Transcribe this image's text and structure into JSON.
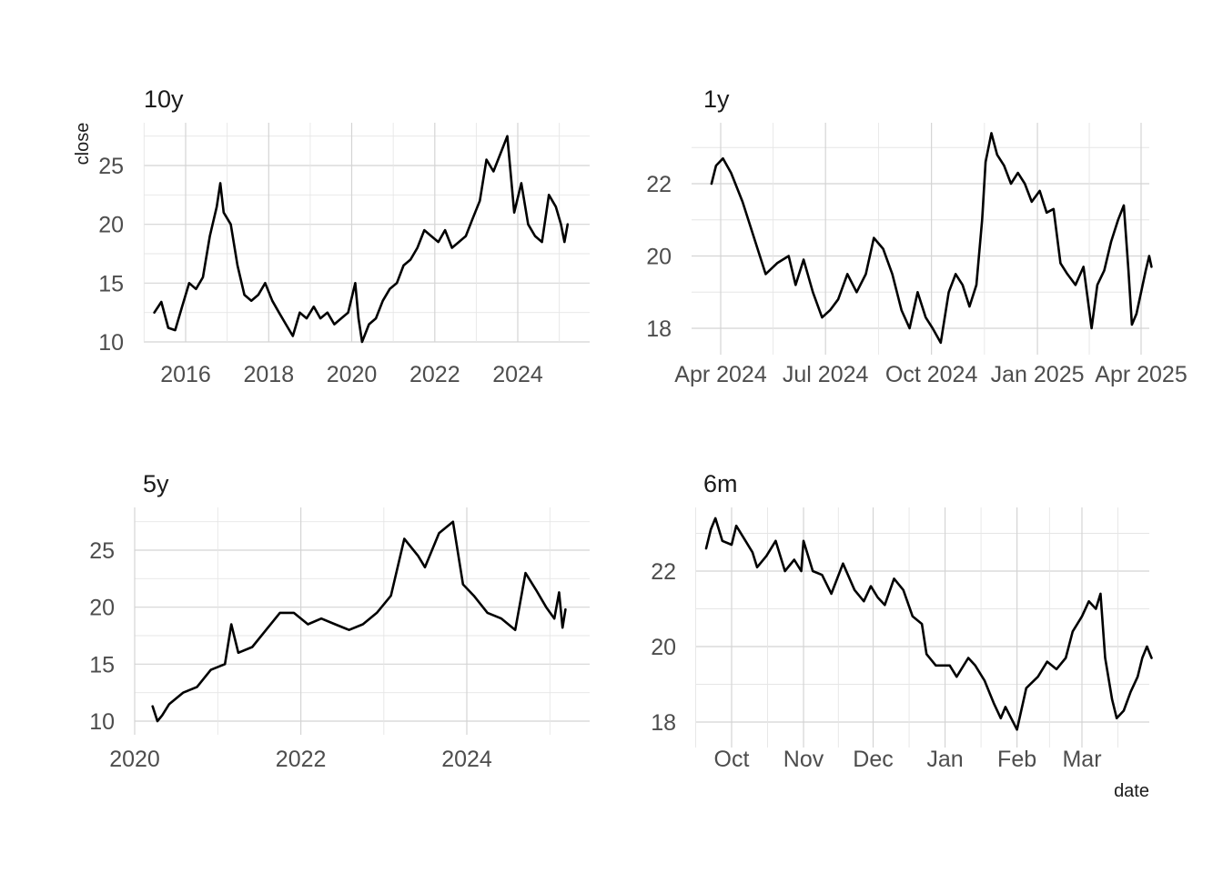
{
  "figure": {
    "ylabel": "close",
    "xlabel": "date"
  },
  "chart_data": [
    {
      "type": "line",
      "title": "10y",
      "x_unit": "date",
      "xlim": [
        "2015-03-20",
        "2025-03-20"
      ],
      "ylim": [
        10,
        27.5
      ],
      "x_ticks": [
        {
          "date": "2016-01-01",
          "label": "2016"
        },
        {
          "date": "2018-01-01",
          "label": "2018"
        },
        {
          "date": "2020-01-01",
          "label": "2020"
        },
        {
          "date": "2022-01-01",
          "label": "2022"
        },
        {
          "date": "2024-01-01",
          "label": "2024"
        }
      ],
      "y_ticks": [
        10,
        15,
        20,
        25
      ],
      "grid": true,
      "series": [
        {
          "values": [
            [
              "2015-04-01",
              12.5
            ],
            [
              "2015-06-01",
              13.4
            ],
            [
              "2015-08-01",
              11.2
            ],
            [
              "2015-10-01",
              11.0
            ],
            [
              "2015-12-01",
              13.0
            ],
            [
              "2016-02-01",
              15.0
            ],
            [
              "2016-04-01",
              14.5
            ],
            [
              "2016-06-01",
              15.5
            ],
            [
              "2016-08-01",
              19.0
            ],
            [
              "2016-10-01",
              21.5
            ],
            [
              "2016-11-01",
              23.5
            ],
            [
              "2016-12-01",
              21.0
            ],
            [
              "2017-02-01",
              20.0
            ],
            [
              "2017-04-01",
              16.5
            ],
            [
              "2017-06-01",
              14.0
            ],
            [
              "2017-08-01",
              13.5
            ],
            [
              "2017-10-01",
              14.0
            ],
            [
              "2017-12-01",
              15.0
            ],
            [
              "2018-02-01",
              13.5
            ],
            [
              "2018-04-01",
              12.5
            ],
            [
              "2018-06-01",
              11.5
            ],
            [
              "2018-08-01",
              10.5
            ],
            [
              "2018-10-01",
              12.5
            ],
            [
              "2018-12-01",
              12.0
            ],
            [
              "2019-02-01",
              13.0
            ],
            [
              "2019-04-01",
              12.0
            ],
            [
              "2019-06-01",
              12.5
            ],
            [
              "2019-08-01",
              11.5
            ],
            [
              "2019-10-01",
              12.0
            ],
            [
              "2019-12-01",
              12.5
            ],
            [
              "2020-02-01",
              15.0
            ],
            [
              "2020-03-01",
              12.0
            ],
            [
              "2020-04-01",
              10.0
            ],
            [
              "2020-06-01",
              11.5
            ],
            [
              "2020-08-01",
              12.0
            ],
            [
              "2020-10-01",
              13.5
            ],
            [
              "2020-12-01",
              14.5
            ],
            [
              "2021-02-01",
              15.0
            ],
            [
              "2021-04-01",
              16.5
            ],
            [
              "2021-06-01",
              17.0
            ],
            [
              "2021-08-01",
              18.0
            ],
            [
              "2021-10-01",
              19.5
            ],
            [
              "2021-12-01",
              19.0
            ],
            [
              "2022-02-01",
              18.5
            ],
            [
              "2022-04-01",
              19.5
            ],
            [
              "2022-06-01",
              18.0
            ],
            [
              "2022-08-01",
              18.5
            ],
            [
              "2022-10-01",
              19.0
            ],
            [
              "2022-12-01",
              20.5
            ],
            [
              "2023-02-01",
              22.0
            ],
            [
              "2023-04-01",
              25.5
            ],
            [
              "2023-06-01",
              24.5
            ],
            [
              "2023-08-01",
              26.0
            ],
            [
              "2023-10-01",
              27.5
            ],
            [
              "2023-12-01",
              21.0
            ],
            [
              "2024-02-01",
              23.5
            ],
            [
              "2024-04-01",
              20.0
            ],
            [
              "2024-06-01",
              19.0
            ],
            [
              "2024-08-01",
              18.5
            ],
            [
              "2024-10-01",
              22.5
            ],
            [
              "2024-12-01",
              21.5
            ],
            [
              "2025-01-15",
              20.0
            ],
            [
              "2025-02-15",
              18.5
            ],
            [
              "2025-03-15",
              20.0
            ]
          ]
        }
      ]
    },
    {
      "type": "line",
      "title": "1y",
      "x_unit": "date",
      "xlim": [
        "2024-03-20",
        "2025-04-10"
      ],
      "ylim": [
        17.5,
        23.5
      ],
      "x_ticks": [
        {
          "date": "2024-04-01",
          "label": "Apr 2024"
        },
        {
          "date": "2024-07-01",
          "label": "Jul 2024"
        },
        {
          "date": "2024-10-01",
          "label": "Oct 2024"
        },
        {
          "date": "2025-01-01",
          "label": "Jan 2025"
        },
        {
          "date": "2025-04-01",
          "label": "Apr 2025"
        }
      ],
      "y_ticks": [
        18,
        20,
        22
      ],
      "grid": true,
      "series": [
        {
          "values": [
            [
              "2024-03-24",
              22.0
            ],
            [
              "2024-03-28",
              22.5
            ],
            [
              "2024-04-03",
              22.7
            ],
            [
              "2024-04-10",
              22.3
            ],
            [
              "2024-04-20",
              21.5
            ],
            [
              "2024-04-30",
              20.5
            ],
            [
              "2024-05-10",
              19.5
            ],
            [
              "2024-05-20",
              19.8
            ],
            [
              "2024-05-30",
              20.0
            ],
            [
              "2024-06-05",
              19.2
            ],
            [
              "2024-06-12",
              19.9
            ],
            [
              "2024-06-20",
              19.0
            ],
            [
              "2024-06-28",
              18.3
            ],
            [
              "2024-07-05",
              18.5
            ],
            [
              "2024-07-12",
              18.8
            ],
            [
              "2024-07-20",
              19.5
            ],
            [
              "2024-07-28",
              19.0
            ],
            [
              "2024-08-05",
              19.5
            ],
            [
              "2024-08-12",
              20.5
            ],
            [
              "2024-08-20",
              20.2
            ],
            [
              "2024-08-28",
              19.5
            ],
            [
              "2024-09-05",
              18.5
            ],
            [
              "2024-09-12",
              18.0
            ],
            [
              "2024-09-19",
              19.0
            ],
            [
              "2024-09-26",
              18.3
            ],
            [
              "2024-10-02",
              18.0
            ],
            [
              "2024-10-09",
              17.6
            ],
            [
              "2024-10-16",
              19.0
            ],
            [
              "2024-10-22",
              19.5
            ],
            [
              "2024-10-28",
              19.2
            ],
            [
              "2024-11-03",
              18.6
            ],
            [
              "2024-11-09",
              19.2
            ],
            [
              "2024-11-14",
              21.0
            ],
            [
              "2024-11-17",
              22.6
            ],
            [
              "2024-11-22",
              23.4
            ],
            [
              "2024-11-27",
              22.8
            ],
            [
              "2024-12-03",
              22.5
            ],
            [
              "2024-12-09",
              22.0
            ],
            [
              "2024-12-15",
              22.3
            ],
            [
              "2024-12-21",
              22.0
            ],
            [
              "2024-12-27",
              21.5
            ],
            [
              "2025-01-03",
              21.8
            ],
            [
              "2025-01-09",
              21.2
            ],
            [
              "2025-01-15",
              21.3
            ],
            [
              "2025-01-21",
              19.8
            ],
            [
              "2025-01-27",
              19.5
            ],
            [
              "2025-02-03",
              19.2
            ],
            [
              "2025-02-10",
              19.7
            ],
            [
              "2025-02-17",
              18.0
            ],
            [
              "2025-02-22",
              19.2
            ],
            [
              "2025-02-28",
              19.6
            ],
            [
              "2025-03-06",
              20.4
            ],
            [
              "2025-03-12",
              21.0
            ],
            [
              "2025-03-17",
              21.4
            ],
            [
              "2025-03-21",
              19.6
            ],
            [
              "2025-03-24",
              18.1
            ],
            [
              "2025-03-28",
              18.4
            ],
            [
              "2025-04-01",
              19.0
            ],
            [
              "2025-04-05",
              19.6
            ],
            [
              "2025-04-08",
              20.0
            ],
            [
              "2025-04-10",
              19.7
            ]
          ]
        }
      ]
    },
    {
      "type": "line",
      "title": "5y",
      "x_unit": "date",
      "xlim": [
        "2020-01-01",
        "2025-06-01"
      ],
      "ylim": [
        10,
        27.5
      ],
      "x_ticks": [
        {
          "date": "2020-01-01",
          "label": "2020"
        },
        {
          "date": "2022-01-01",
          "label": "2022"
        },
        {
          "date": "2024-01-01",
          "label": "2024"
        }
      ],
      "y_ticks": [
        10,
        15,
        20,
        25
      ],
      "grid": true,
      "series": [
        {
          "values": [
            [
              "2020-03-20",
              11.3
            ],
            [
              "2020-04-10",
              10.0
            ],
            [
              "2020-05-01",
              10.5
            ],
            [
              "2020-06-01",
              11.5
            ],
            [
              "2020-08-01",
              12.5
            ],
            [
              "2020-10-01",
              13.0
            ],
            [
              "2020-12-01",
              14.5
            ],
            [
              "2021-02-01",
              15.0
            ],
            [
              "2021-03-01",
              18.5
            ],
            [
              "2021-04-01",
              16.0
            ],
            [
              "2021-06-01",
              16.5
            ],
            [
              "2021-08-01",
              18.0
            ],
            [
              "2021-10-01",
              19.5
            ],
            [
              "2021-12-01",
              19.5
            ],
            [
              "2022-02-01",
              18.5
            ],
            [
              "2022-04-01",
              19.0
            ],
            [
              "2022-06-01",
              18.5
            ],
            [
              "2022-08-01",
              18.0
            ],
            [
              "2022-10-01",
              18.5
            ],
            [
              "2022-12-01",
              19.5
            ],
            [
              "2023-02-01",
              21.0
            ],
            [
              "2023-04-01",
              26.0
            ],
            [
              "2023-06-01",
              24.5
            ],
            [
              "2023-07-01",
              23.5
            ],
            [
              "2023-09-01",
              26.5
            ],
            [
              "2023-11-01",
              27.5
            ],
            [
              "2023-12-15",
              22.0
            ],
            [
              "2024-02-01",
              21.0
            ],
            [
              "2024-04-01",
              19.5
            ],
            [
              "2024-06-01",
              19.0
            ],
            [
              "2024-08-01",
              18.0
            ],
            [
              "2024-09-15",
              23.0
            ],
            [
              "2024-11-01",
              21.5
            ],
            [
              "2024-12-15",
              20.0
            ],
            [
              "2025-01-20",
              19.0
            ],
            [
              "2025-02-10",
              21.3
            ],
            [
              "2025-02-25",
              18.2
            ],
            [
              "2025-03-10",
              19.8
            ]
          ]
        }
      ]
    },
    {
      "type": "line",
      "title": "6m",
      "x_unit": "date",
      "xlim": [
        "2024-09-14",
        "2025-03-31"
      ],
      "ylim": [
        17.7,
        23.6
      ],
      "x_ticks": [
        {
          "date": "2024-10-01",
          "label": "Oct"
        },
        {
          "date": "2024-11-01",
          "label": "Nov"
        },
        {
          "date": "2024-12-01",
          "label": "Dec"
        },
        {
          "date": "2025-01-01",
          "label": "Jan"
        },
        {
          "date": "2025-02-01",
          "label": "Feb"
        },
        {
          "date": "2025-03-01",
          "label": "Mar"
        }
      ],
      "y_ticks": [
        18,
        20,
        22
      ],
      "grid": true,
      "series": [
        {
          "values": [
            [
              "2024-09-20",
              22.6
            ],
            [
              "2024-09-22",
              23.1
            ],
            [
              "2024-09-24",
              23.4
            ],
            [
              "2024-09-27",
              22.8
            ],
            [
              "2024-10-01",
              22.7
            ],
            [
              "2024-10-03",
              23.2
            ],
            [
              "2024-10-07",
              22.8
            ],
            [
              "2024-10-10",
              22.5
            ],
            [
              "2024-10-12",
              22.1
            ],
            [
              "2024-10-16",
              22.4
            ],
            [
              "2024-10-20",
              22.8
            ],
            [
              "2024-10-24",
              22.0
            ],
            [
              "2024-10-28",
              22.3
            ],
            [
              "2024-10-31",
              22.0
            ],
            [
              "2024-11-01",
              22.8
            ],
            [
              "2024-11-05",
              22.0
            ],
            [
              "2024-11-09",
              21.9
            ],
            [
              "2024-11-13",
              21.4
            ],
            [
              "2024-11-18",
              22.2
            ],
            [
              "2024-11-23",
              21.5
            ],
            [
              "2024-11-27",
              21.2
            ],
            [
              "2024-11-30",
              21.6
            ],
            [
              "2024-12-03",
              21.3
            ],
            [
              "2024-12-06",
              21.1
            ],
            [
              "2024-12-10",
              21.8
            ],
            [
              "2024-12-14",
              21.5
            ],
            [
              "2024-12-18",
              20.8
            ],
            [
              "2024-12-22",
              20.6
            ],
            [
              "2024-12-24",
              19.8
            ],
            [
              "2024-12-28",
              19.5
            ],
            [
              "2025-01-03",
              19.5
            ],
            [
              "2025-01-06",
              19.2
            ],
            [
              "2025-01-11",
              19.7
            ],
            [
              "2025-01-14",
              19.5
            ],
            [
              "2025-01-18",
              19.1
            ],
            [
              "2025-01-22",
              18.5
            ],
            [
              "2025-01-25",
              18.1
            ],
            [
              "2025-01-27",
              18.4
            ],
            [
              "2025-02-01",
              17.8
            ],
            [
              "2025-02-05",
              18.9
            ],
            [
              "2025-02-10",
              19.2
            ],
            [
              "2025-02-14",
              19.6
            ],
            [
              "2025-02-18",
              19.4
            ],
            [
              "2025-02-22",
              19.7
            ],
            [
              "2025-02-25",
              20.4
            ],
            [
              "2025-03-01",
              20.8
            ],
            [
              "2025-03-04",
              21.2
            ],
            [
              "2025-03-07",
              21.0
            ],
            [
              "2025-03-09",
              21.4
            ],
            [
              "2025-03-11",
              19.7
            ],
            [
              "2025-03-14",
              18.6
            ],
            [
              "2025-03-16",
              18.1
            ],
            [
              "2025-03-19",
              18.3
            ],
            [
              "2025-03-22",
              18.8
            ],
            [
              "2025-03-25",
              19.2
            ],
            [
              "2025-03-27",
              19.7
            ],
            [
              "2025-03-29",
              20.0
            ],
            [
              "2025-03-31",
              19.7
            ]
          ]
        }
      ]
    }
  ]
}
